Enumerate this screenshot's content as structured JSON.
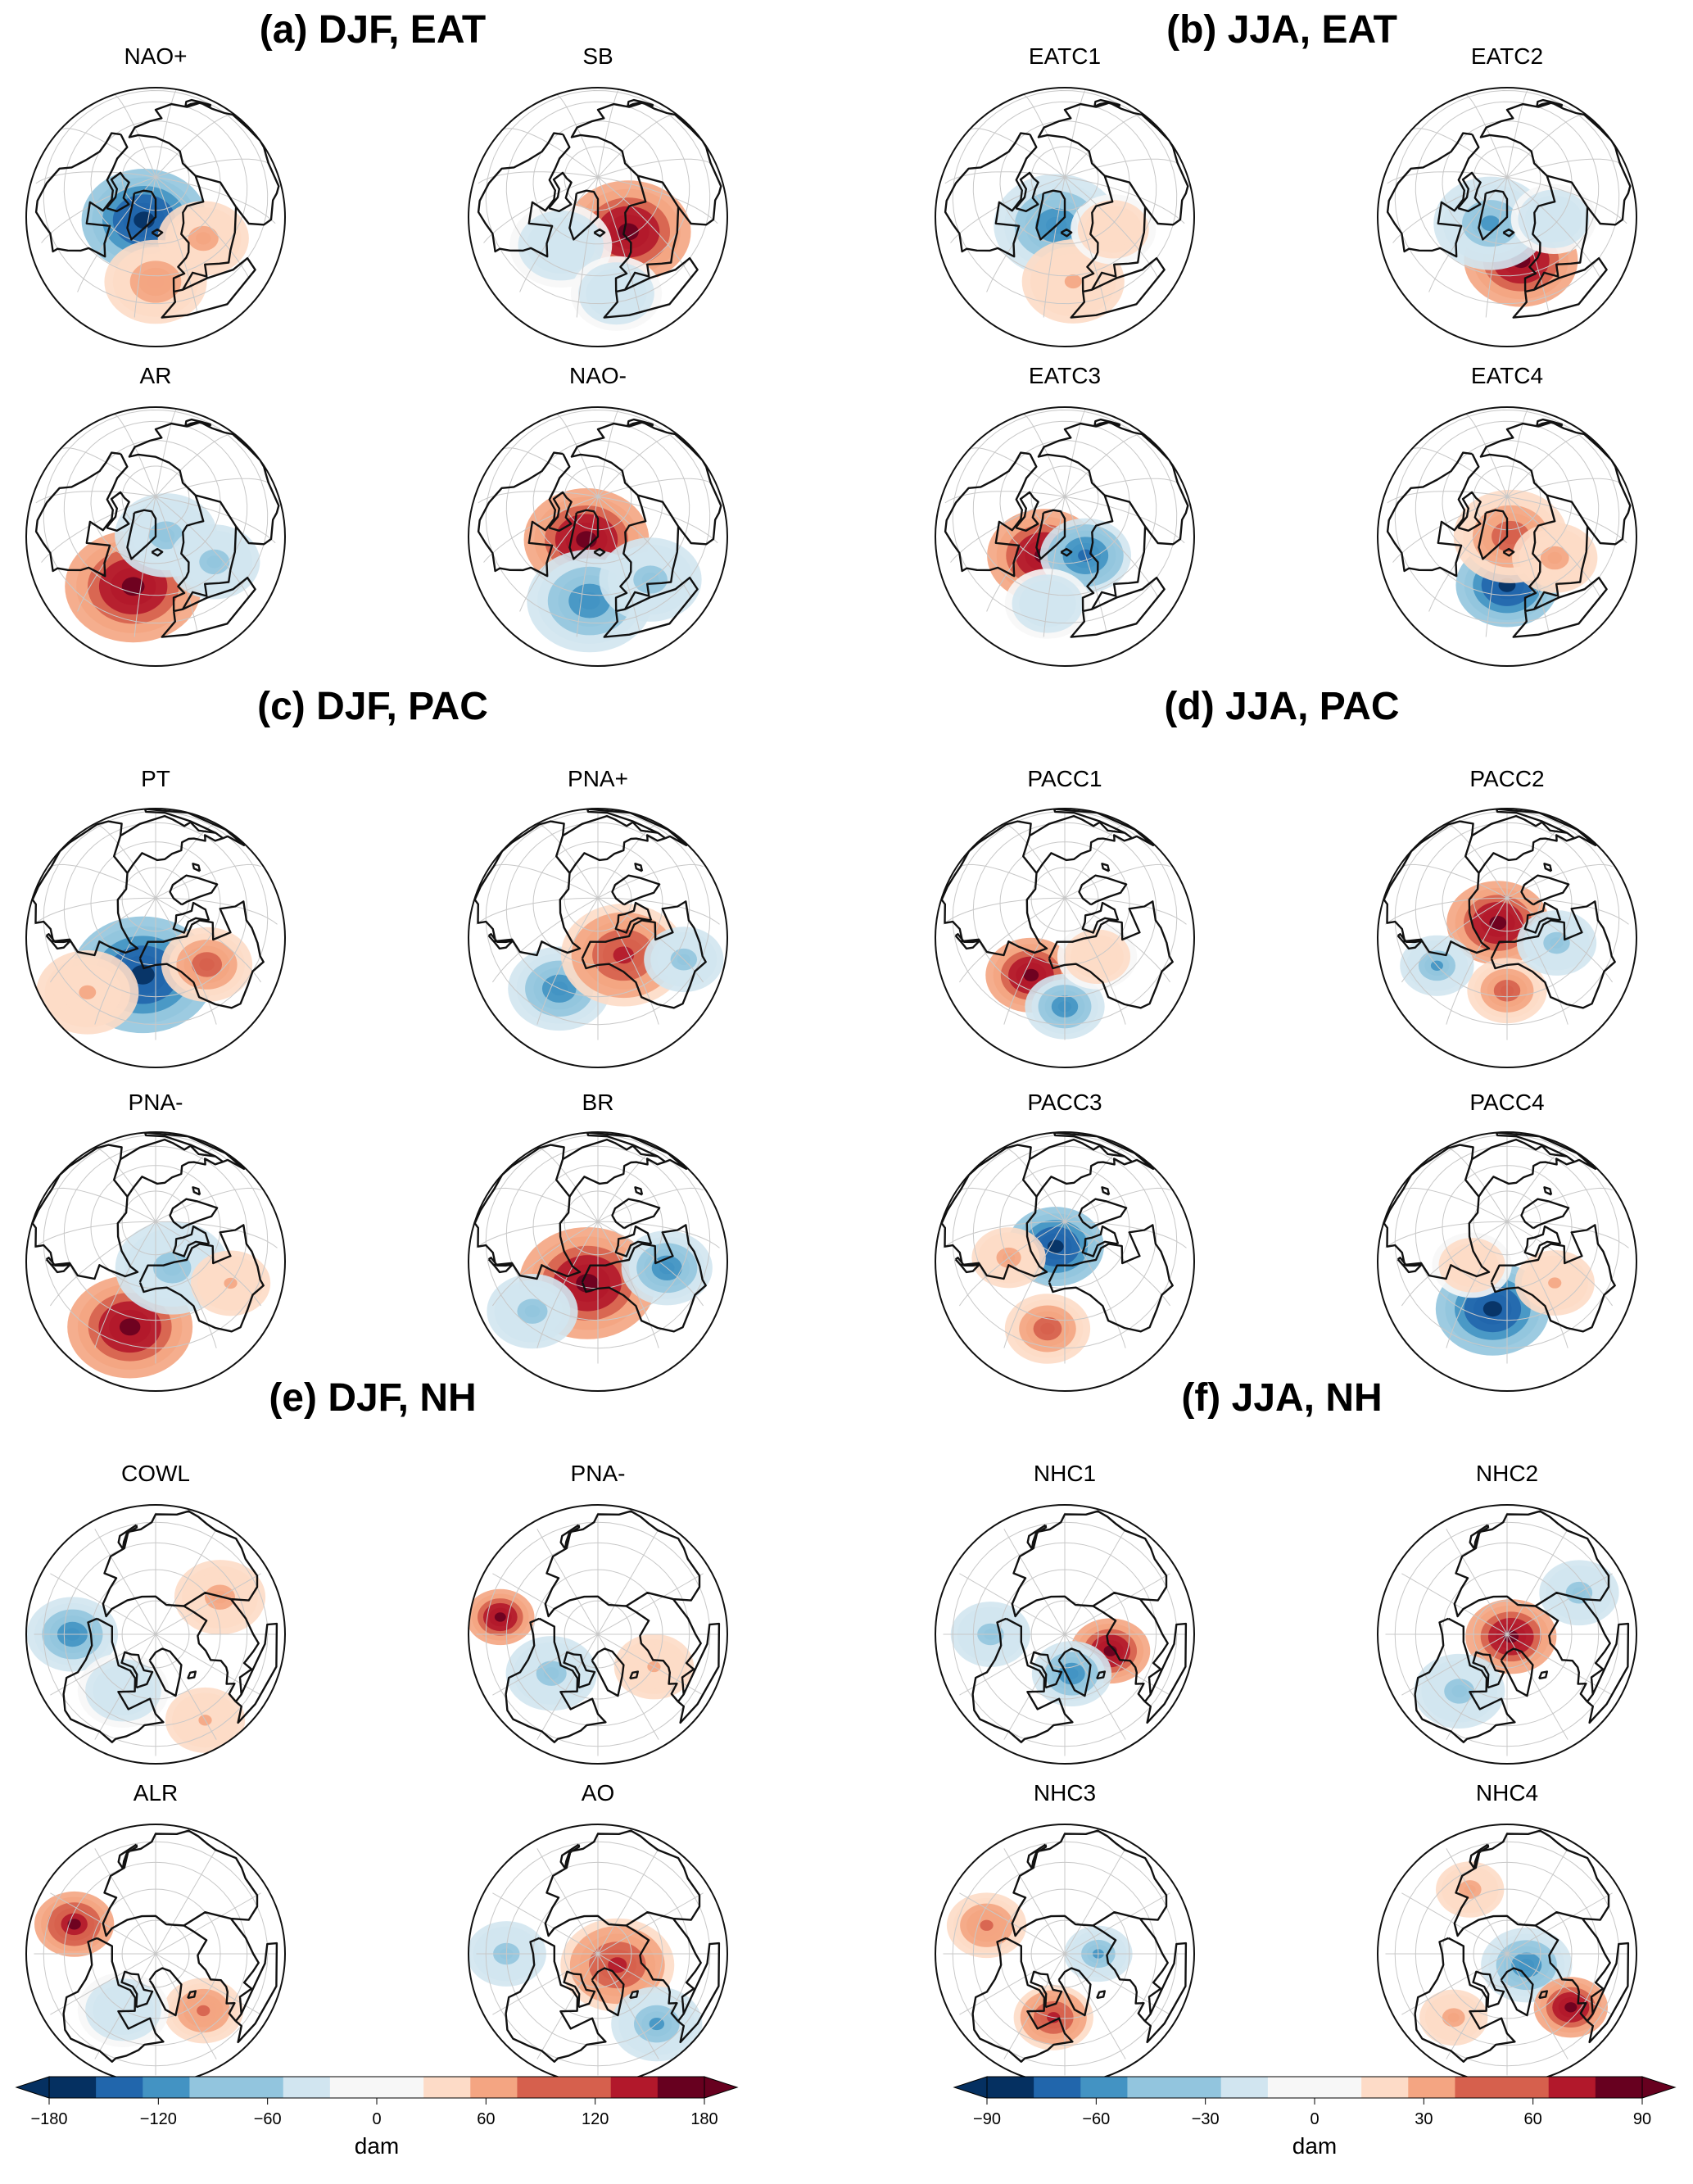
{
  "sections": [
    {
      "id": "a",
      "title": "(a) DJF, EAT",
      "region": "eat",
      "panels": [
        {
          "label": "NAO+",
          "anomalies": [
            {
              "lon": -35,
              "lat": 70,
              "v": -1.0,
              "r": 0.22
            },
            {
              "lon": -20,
              "lat": 42,
              "v": 0.45,
              "r": 0.18
            },
            {
              "lon": 20,
              "lat": 55,
              "v": 0.35,
              "r": 0.16
            }
          ]
        },
        {
          "label": "SB",
          "anomalies": [
            {
              "lon": 10,
              "lat": 62,
              "v": 1.0,
              "r": 0.22
            },
            {
              "lon": -50,
              "lat": 55,
              "v": -0.3,
              "r": 0.18
            },
            {
              "lon": -10,
              "lat": 35,
              "v": -0.3,
              "r": 0.16
            }
          ]
        },
        {
          "label": "AR",
          "anomalies": [
            {
              "lon": -35,
              "lat": 48,
              "v": 1.0,
              "r": 0.24
            },
            {
              "lon": -5,
              "lat": 72,
              "v": -0.4,
              "r": 0.18
            },
            {
              "lon": 25,
              "lat": 50,
              "v": -0.4,
              "r": 0.16
            }
          ]
        },
        {
          "label": "NAO-",
          "anomalies": [
            {
              "lon": -35,
              "lat": 70,
              "v": 1.0,
              "r": 0.22
            },
            {
              "lon": -25,
              "lat": 42,
              "v": -0.6,
              "r": 0.22
            },
            {
              "lon": 15,
              "lat": 45,
              "v": -0.4,
              "r": 0.18
            }
          ]
        }
      ]
    },
    {
      "id": "b",
      "title": "(b) JJA, EAT",
      "region": "eat",
      "panels": [
        {
          "label": "EATC1",
          "anomalies": [
            {
              "lon": -30,
              "lat": 68,
              "v": -0.6,
              "r": 0.22
            },
            {
              "lon": -15,
              "lat": 42,
              "v": 0.3,
              "r": 0.18
            },
            {
              "lon": 25,
              "lat": 58,
              "v": 0.25,
              "r": 0.15
            }
          ]
        },
        {
          "label": "EATC2",
          "anomalies": [
            {
              "lon": -10,
              "lat": 52,
              "v": 1.0,
              "r": 0.2
            },
            {
              "lon": -40,
              "lat": 68,
              "v": -0.5,
              "r": 0.2
            },
            {
              "lon": 30,
              "lat": 62,
              "v": -0.3,
              "r": 0.15
            }
          ]
        },
        {
          "label": "EATC3",
          "anomalies": [
            {
              "lon": -40,
              "lat": 62,
              "v": 1.0,
              "r": 0.2
            },
            {
              "lon": 0,
              "lat": 62,
              "v": -0.7,
              "r": 0.16
            },
            {
              "lon": -30,
              "lat": 40,
              "v": -0.3,
              "r": 0.15
            }
          ]
        },
        {
          "label": "EATC4",
          "anomalies": [
            {
              "lon": -20,
              "lat": 50,
              "v": -1.0,
              "r": 0.18
            },
            {
              "lon": -15,
              "lat": 72,
              "v": 0.6,
              "r": 0.2
            },
            {
              "lon": 20,
              "lat": 55,
              "v": 0.4,
              "r": 0.15
            }
          ]
        }
      ]
    },
    {
      "id": "c",
      "title": "(c) DJF, PAC",
      "region": "pac",
      "panels": [
        {
          "label": "PT",
          "anomalies": [
            {
              "lon": -160,
              "lat": 55,
              "v": -1.0,
              "r": 0.25
            },
            {
              "lon": -110,
              "lat": 52,
              "v": 0.6,
              "r": 0.16
            },
            {
              "lon": 170,
              "lat": 35,
              "v": 0.3,
              "r": 0.18
            }
          ]
        },
        {
          "label": "PNA+",
          "anomalies": [
            {
              "lon": -175,
              "lat": 45,
              "v": -0.6,
              "r": 0.18
            },
            {
              "lon": -125,
              "lat": 62,
              "v": 0.8,
              "r": 0.22
            },
            {
              "lon": -90,
              "lat": 40,
              "v": -0.35,
              "r": 0.14
            }
          ]
        },
        {
          "label": "PNA-",
          "anomalies": [
            {
              "lon": -165,
              "lat": 40,
              "v": 1.0,
              "r": 0.22
            },
            {
              "lon": -130,
              "lat": 68,
              "v": -0.35,
              "r": 0.2
            },
            {
              "lon": -95,
              "lat": 45,
              "v": 0.3,
              "r": 0.14
            }
          ]
        },
        {
          "label": "BR",
          "anomalies": [
            {
              "lon": -160,
              "lat": 62,
              "v": 1.0,
              "r": 0.24
            },
            {
              "lon": -90,
              "lat": 52,
              "v": -0.6,
              "r": 0.16
            },
            {
              "lon": 170,
              "lat": 38,
              "v": -0.4,
              "r": 0.16
            }
          ]
        }
      ]
    },
    {
      "id": "d",
      "title": "(d) JJA, PAC",
      "region": "pac",
      "panels": [
        {
          "label": "PACC1",
          "anomalies": [
            {
              "lon": -175,
              "lat": 52,
              "v": 1.0,
              "r": 0.16
            },
            {
              "lon": -150,
              "lat": 40,
              "v": -0.6,
              "r": 0.14
            },
            {
              "lon": -120,
              "lat": 60,
              "v": 0.25,
              "r": 0.14
            }
          ]
        },
        {
          "label": "PACC2",
          "anomalies": [
            {
              "lon": -170,
              "lat": 78,
              "v": 1.0,
              "r": 0.18
            },
            {
              "lon": -150,
              "lat": 48,
              "v": 0.6,
              "r": 0.14
            },
            {
              "lon": 160,
              "lat": 45,
              "v": -0.5,
              "r": 0.13
            },
            {
              "lon": -100,
              "lat": 60,
              "v": -0.35,
              "r": 0.14
            }
          ]
        },
        {
          "label": "PACC3",
          "anomalies": [
            {
              "lon": -170,
              "lat": 78,
              "v": -1.0,
              "r": 0.17
            },
            {
              "lon": -160,
              "lat": 40,
              "v": 0.6,
              "r": 0.15
            },
            {
              "lon": 150,
              "lat": 60,
              "v": 0.4,
              "r": 0.13
            }
          ]
        },
        {
          "label": "PACC4",
          "anomalies": [
            {
              "lon": -160,
              "lat": 50,
              "v": -1.0,
              "r": 0.2
            },
            {
              "lon": -110,
              "lat": 55,
              "v": 0.3,
              "r": 0.14
            },
            {
              "lon": 170,
              "lat": 65,
              "v": 0.25,
              "r": 0.14
            }
          ]
        }
      ]
    },
    {
      "id": "e",
      "title": "(e) DJF, NH",
      "region": "nh",
      "panels": [
        {
          "label": "COWL",
          "anomalies": [
            {
              "lon": -150,
              "lat": 50,
              "v": -0.6,
              "r": 0.16
            },
            {
              "lon": 60,
              "lat": 55,
              "v": 0.4,
              "r": 0.16
            },
            {
              "lon": -90,
              "lat": 60,
              "v": -0.3,
              "r": 0.16
            },
            {
              "lon": -30,
              "lat": 40,
              "v": 0.3,
              "r": 0.14
            }
          ]
        },
        {
          "label": "PNA-",
          "anomalies": [
            {
              "lon": -160,
              "lat": 40,
              "v": 1.0,
              "r": 0.12
            },
            {
              "lon": -110,
              "lat": 62,
              "v": -0.35,
              "r": 0.16
            },
            {
              "lon": 0,
              "lat": 60,
              "v": 0.3,
              "r": 0.14
            }
          ]
        },
        {
          "label": "ALR",
          "anomalies": [
            {
              "lon": -170,
              "lat": 48,
              "v": 0.9,
              "r": 0.14
            },
            {
              "lon": -20,
              "lat": 55,
              "v": 0.5,
              "r": 0.14
            },
            {
              "lon": -90,
              "lat": 60,
              "v": -0.3,
              "r": 0.16
            }
          ]
        },
        {
          "label": "AO",
          "anomalies": [
            {
              "lon": 0,
              "lat": 80,
              "v": 0.8,
              "r": 0.2
            },
            {
              "lon": -20,
              "lat": 45,
              "v": -0.5,
              "r": 0.16
            },
            {
              "lon": -150,
              "lat": 45,
              "v": -0.4,
              "r": 0.14
            }
          ]
        }
      ]
    },
    {
      "id": "f",
      "title": "(f) JJA, NH",
      "region": "nh",
      "panels": [
        {
          "label": "NHC1",
          "anomalies": [
            {
              "lon": 10,
              "lat": 68,
              "v": 1.0,
              "r": 0.14
            },
            {
              "lon": -50,
              "lat": 72,
              "v": -0.6,
              "r": 0.14
            },
            {
              "lon": -150,
              "lat": 55,
              "v": -0.35,
              "r": 0.14
            }
          ]
        },
        {
          "label": "NHC2",
          "anomalies": [
            {
              "lon": 0,
              "lat": 88,
              "v": 1.0,
              "r": 0.16
            },
            {
              "lon": -100,
              "lat": 55,
              "v": -0.35,
              "r": 0.16
            },
            {
              "lon": 60,
              "lat": 50,
              "v": -0.35,
              "r": 0.14
            }
          ]
        },
        {
          "label": "NHC3",
          "anomalies": [
            {
              "lon": -170,
              "lat": 50,
              "v": 0.5,
              "r": 0.14
            },
            {
              "lon": -70,
              "lat": 60,
              "v": 0.8,
              "r": 0.14
            },
            {
              "lon": 30,
              "lat": 75,
              "v": -0.5,
              "r": 0.12
            }
          ]
        },
        {
          "label": "NHC4",
          "anomalies": [
            {
              "lon": 0,
              "lat": 80,
              "v": -0.6,
              "r": 0.16
            },
            {
              "lon": -10,
              "lat": 50,
              "v": 1.0,
              "r": 0.13
            },
            {
              "lon": -100,
              "lat": 50,
              "v": 0.4,
              "r": 0.12
            },
            {
              "lon": 150,
              "lat": 55,
              "v": 0.4,
              "r": 0.12
            }
          ]
        }
      ]
    }
  ],
  "colorbars": [
    {
      "ticks": [
        "−180",
        "−120",
        "−60",
        "0",
        "60",
        "120",
        "180"
      ],
      "min": -180,
      "max": 180,
      "unit": "dam"
    },
    {
      "ticks": [
        "−90",
        "−60",
        "−30",
        "0",
        "30",
        "60",
        "90"
      ],
      "min": -90,
      "max": 90,
      "unit": "dam"
    }
  ],
  "palette": [
    "#053061",
    "#2166ac",
    "#4393c3",
    "#92c5de",
    "#d1e5f0",
    "#f7f7f7",
    "#fddbc7",
    "#f4a582",
    "#d6604d",
    "#b2182b",
    "#67001f"
  ]
}
